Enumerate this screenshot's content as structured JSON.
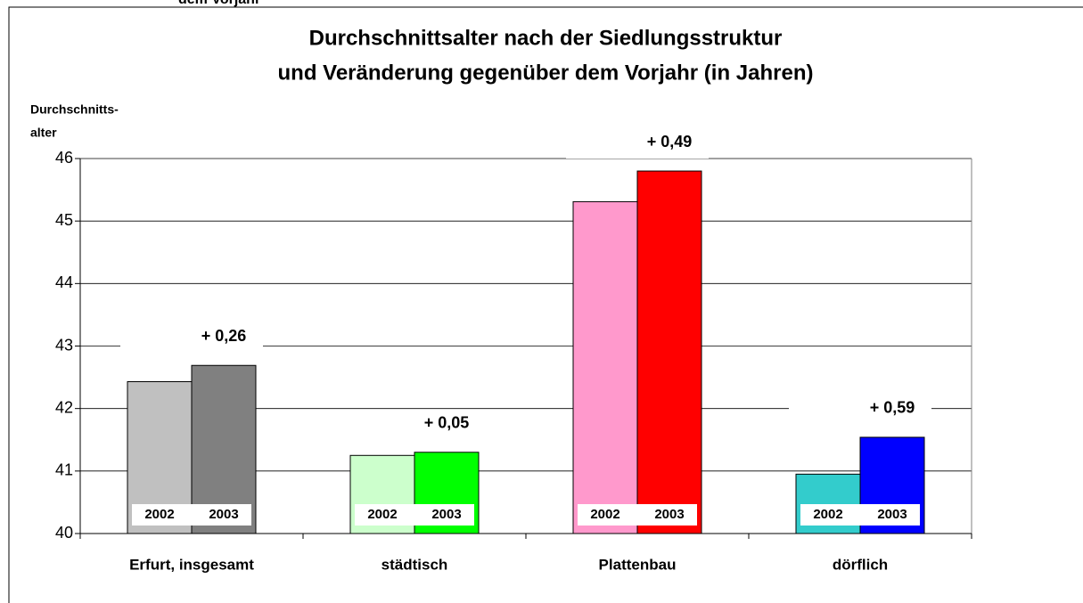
{
  "header_fragment": "dem Vorjahr",
  "chart_data": {
    "type": "bar",
    "title_lines": [
      "Durchschnittsalter nach der Siedlungsstruktur",
      "und Veränderung gegenüber dem Vorjahr (in Jahren)"
    ],
    "ylabel_lines": [
      "Durchschnitts-",
      "alter"
    ],
    "categories": [
      "Erfurt, insgesamt",
      "städtisch",
      "Plattenbau",
      "dörflich"
    ],
    "series": [
      {
        "name": "2002",
        "colors": [
          "#c0c0c0",
          "#ccffcc",
          "#ff99cc",
          "#33cccc"
        ],
        "values": [
          42.43,
          41.25,
          45.31,
          40.95
        ]
      },
      {
        "name": "2003",
        "colors": [
          "#808080",
          "#00ff00",
          "#ff0000",
          "#0000ff"
        ],
        "values": [
          42.69,
          41.3,
          45.8,
          41.54
        ]
      }
    ],
    "annotations": [
      "+ 0,26",
      "+ 0,05",
      "+ 0,49",
      "+ 0,59"
    ],
    "ylim": [
      40,
      46
    ],
    "yticks": [
      40,
      41,
      42,
      43,
      44,
      45,
      46
    ],
    "grid": true
  }
}
